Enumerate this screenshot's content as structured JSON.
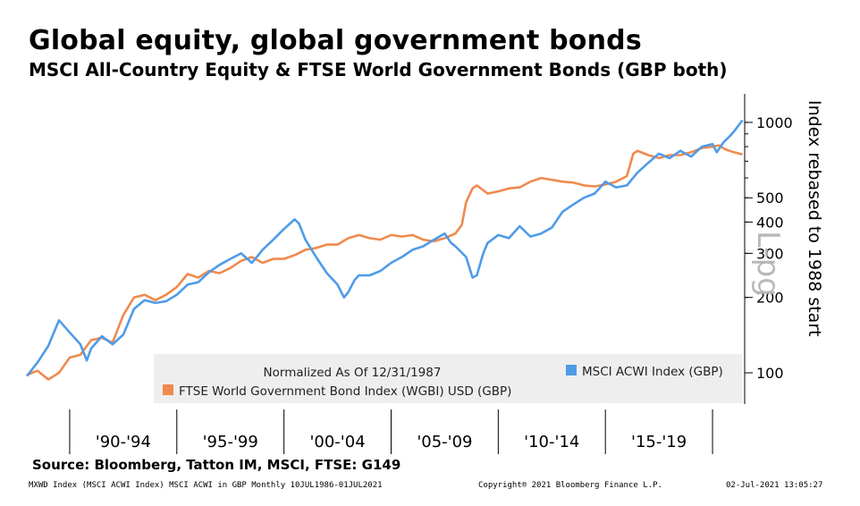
{
  "title": "Global equity, global government bonds",
  "subtitle": "MSCI All-Country Equity & FTSE World Government Bonds (GBP both)",
  "source": "Source: Bloomberg, Tatton IM, MSCI, FTSE: G149",
  "footer": {
    "left": "MXWD Index (MSCI ACWI Index) MSCI ACWI in GBP  Monthly 10JUL1986-01JUL2021",
    "center": "Copyright® 2021 Bloomberg Finance L.P.",
    "right": "02-Jul-2021 13:05:27"
  },
  "watermark": "L-pg",
  "colors": {
    "equity": "#4f9be8",
    "bonds": "#ef8a4e",
    "legend_bg": "#eeeeee"
  },
  "chart_data": {
    "type": "line",
    "ylabel": "Index rebased to 1988 start",
    "yscale": "log",
    "ylim": [
      75,
      1300
    ],
    "y_ticks": [
      {
        "value": 100,
        "label": "100"
      },
      {
        "value": 200,
        "label": "200"
      },
      {
        "value": 300,
        "label": "300"
      },
      {
        "value": 400,
        "label": "400"
      },
      {
        "value": 500,
        "label": "500"
      },
      {
        "value": 1000,
        "label": "1000"
      }
    ],
    "xlim": [
      1988.0,
      2021.5
    ],
    "x_bands": [
      {
        "label": "'90-'94",
        "start": 1990,
        "end": 1995
      },
      {
        "label": "'95-'99",
        "start": 1995,
        "end": 2000
      },
      {
        "label": "'00-'04",
        "start": 2000,
        "end": 2005
      },
      {
        "label": "'05-'09",
        "start": 2005,
        "end": 2010
      },
      {
        "label": "'10-'14",
        "start": 2010,
        "end": 2015
      },
      {
        "label": "'15-'19",
        "start": 2015,
        "end": 2020
      }
    ],
    "legend_note": "Normalized As Of 12/31/1987",
    "series": [
      {
        "name": "MSCI ACWI Index (GBP)",
        "color": "#4f9be8",
        "x": [
          1988.0,
          1988.5,
          1989.0,
          1989.5,
          1990.0,
          1990.5,
          1990.8,
          1991.0,
          1991.5,
          1992.0,
          1992.5,
          1993.0,
          1993.5,
          1994.0,
          1994.5,
          1995.0,
          1995.5,
          1996.0,
          1996.5,
          1997.0,
          1997.5,
          1998.0,
          1998.5,
          1998.8,
          1999.0,
          1999.5,
          2000.0,
          2000.5,
          2000.7,
          2001.0,
          2001.5,
          2002.0,
          2002.5,
          2002.8,
          2003.0,
          2003.3,
          2003.5,
          2004.0,
          2004.5,
          2005.0,
          2005.5,
          2006.0,
          2006.5,
          2007.0,
          2007.5,
          2007.8,
          2008.0,
          2008.5,
          2008.8,
          2009.0,
          2009.3,
          2009.5,
          2010.0,
          2010.5,
          2011.0,
          2011.5,
          2012.0,
          2012.5,
          2013.0,
          2013.5,
          2014.0,
          2014.5,
          2015.0,
          2015.5,
          2016.0,
          2016.5,
          2017.0,
          2017.5,
          2018.0,
          2018.5,
          2019.0,
          2019.5,
          2020.0,
          2020.2,
          2020.5,
          2020.8,
          2021.0,
          2021.4
        ],
        "values": [
          97,
          110,
          128,
          162,
          145,
          130,
          112,
          125,
          140,
          130,
          142,
          180,
          195,
          190,
          193,
          205,
          225,
          230,
          252,
          270,
          285,
          300,
          275,
          295,
          310,
          340,
          375,
          410,
          395,
          340,
          290,
          250,
          225,
          200,
          210,
          235,
          245,
          245,
          255,
          275,
          290,
          310,
          320,
          340,
          360,
          330,
          320,
          290,
          240,
          245,
          300,
          330,
          355,
          345,
          385,
          350,
          360,
          380,
          440,
          470,
          500,
          520,
          580,
          550,
          560,
          630,
          690,
          750,
          720,
          770,
          730,
          800,
          820,
          760,
          830,
          880,
          920,
          1020
        ]
      },
      {
        "name": "FTSE World Government Bond Index (WGBI) USD (GBP)",
        "color": "#ef8a4e",
        "x": [
          1988.0,
          1988.5,
          1989.0,
          1989.5,
          1990.0,
          1990.5,
          1991.0,
          1991.5,
          1992.0,
          1992.5,
          1993.0,
          1993.5,
          1994.0,
          1994.5,
          1995.0,
          1995.5,
          1996.0,
          1996.5,
          1997.0,
          1997.5,
          1998.0,
          1998.5,
          1999.0,
          1999.5,
          2000.0,
          2000.5,
          2001.0,
          2001.5,
          2002.0,
          2002.5,
          2003.0,
          2003.5,
          2004.0,
          2004.5,
          2005.0,
          2005.5,
          2006.0,
          2006.5,
          2007.0,
          2007.5,
          2008.0,
          2008.3,
          2008.5,
          2008.8,
          2009.0,
          2009.5,
          2010.0,
          2010.5,
          2011.0,
          2011.5,
          2012.0,
          2012.5,
          2013.0,
          2013.5,
          2014.0,
          2014.5,
          2015.0,
          2015.5,
          2016.0,
          2016.3,
          2016.5,
          2017.0,
          2017.5,
          2018.0,
          2018.5,
          2019.0,
          2019.5,
          2020.0,
          2020.3,
          2020.6,
          2021.0,
          2021.4
        ],
        "values": [
          98,
          102,
          94,
          100,
          115,
          118,
          135,
          138,
          132,
          170,
          200,
          205,
          195,
          205,
          220,
          248,
          240,
          255,
          250,
          262,
          280,
          290,
          275,
          285,
          285,
          295,
          310,
          315,
          325,
          325,
          345,
          355,
          345,
          340,
          355,
          350,
          355,
          340,
          335,
          345,
          360,
          390,
          480,
          545,
          560,
          520,
          530,
          545,
          550,
          580,
          600,
          590,
          580,
          575,
          560,
          555,
          565,
          580,
          610,
          750,
          770,
          740,
          720,
          740,
          740,
          760,
          790,
          800,
          810,
          780,
          760,
          745
        ]
      }
    ]
  }
}
